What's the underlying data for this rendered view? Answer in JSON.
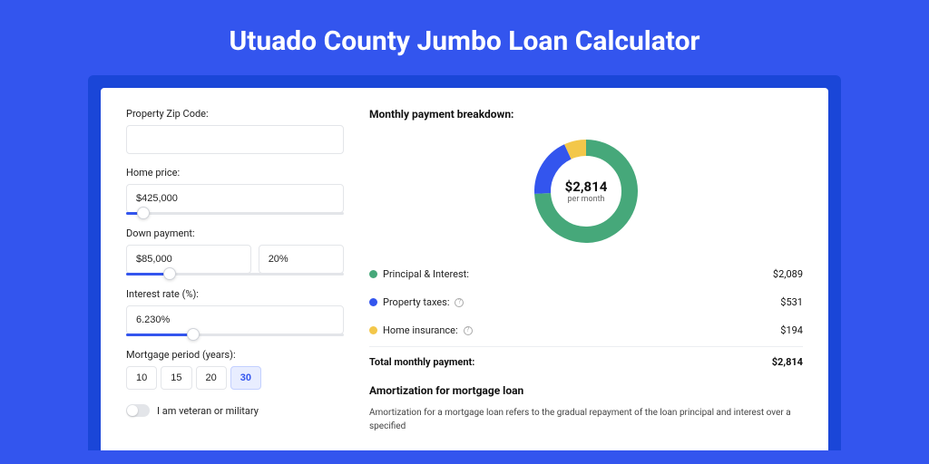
{
  "page": {
    "background_color": "#3355ee",
    "card_wrap_color": "#1a46d8",
    "title": "Utuado County Jumbo Loan Calculator"
  },
  "form": {
    "zip": {
      "label": "Property Zip Code:",
      "value": ""
    },
    "home_price": {
      "label": "Home price:",
      "value": "$425,000",
      "slider_pct": 8
    },
    "down_payment": {
      "label": "Down payment:",
      "amount": "$85,000",
      "percent": "20%",
      "slider_pct": 20
    },
    "interest_rate": {
      "label": "Interest rate (%):",
      "value": "6.230%",
      "slider_pct": 31
    },
    "mortgage_period": {
      "label": "Mortgage period (years):",
      "options": [
        "10",
        "15",
        "20",
        "30"
      ],
      "active_index": 3
    },
    "veteran": {
      "label": "I am veteran or military",
      "checked": false
    }
  },
  "breakdown": {
    "title": "Monthly payment breakdown:",
    "donut": {
      "amount": "$2,814",
      "sub": "per month",
      "segments": [
        {
          "label": "Principal & Interest",
          "value": 2089,
          "value_str": "$2,089",
          "color": "#46a87a",
          "percent": 74.2
        },
        {
          "label": "Property taxes",
          "value": 531,
          "value_str": "$531",
          "color": "#3355ee",
          "percent": 18.9,
          "info": true
        },
        {
          "label": "Home insurance",
          "value": 194,
          "value_str": "$194",
          "color": "#f3c74a",
          "percent": 6.9,
          "info": true
        }
      ],
      "stroke_width": 18,
      "inner_bg": "#ffffff"
    },
    "rows": [
      {
        "key": "principal_interest",
        "label": "Principal & Interest:",
        "value": "$2,089",
        "color": "#46a87a",
        "info": false
      },
      {
        "key": "property_taxes",
        "label": "Property taxes:",
        "value": "$531",
        "color": "#3355ee",
        "info": true
      },
      {
        "key": "home_insurance",
        "label": "Home insurance:",
        "value": "$194",
        "color": "#f3c74a",
        "info": true
      }
    ],
    "total": {
      "label": "Total monthly payment:",
      "value": "$2,814"
    }
  },
  "amortization": {
    "title": "Amortization for mortgage loan",
    "text": "Amortization for a mortgage loan refers to the gradual repayment of the loan principal and interest over a specified"
  }
}
